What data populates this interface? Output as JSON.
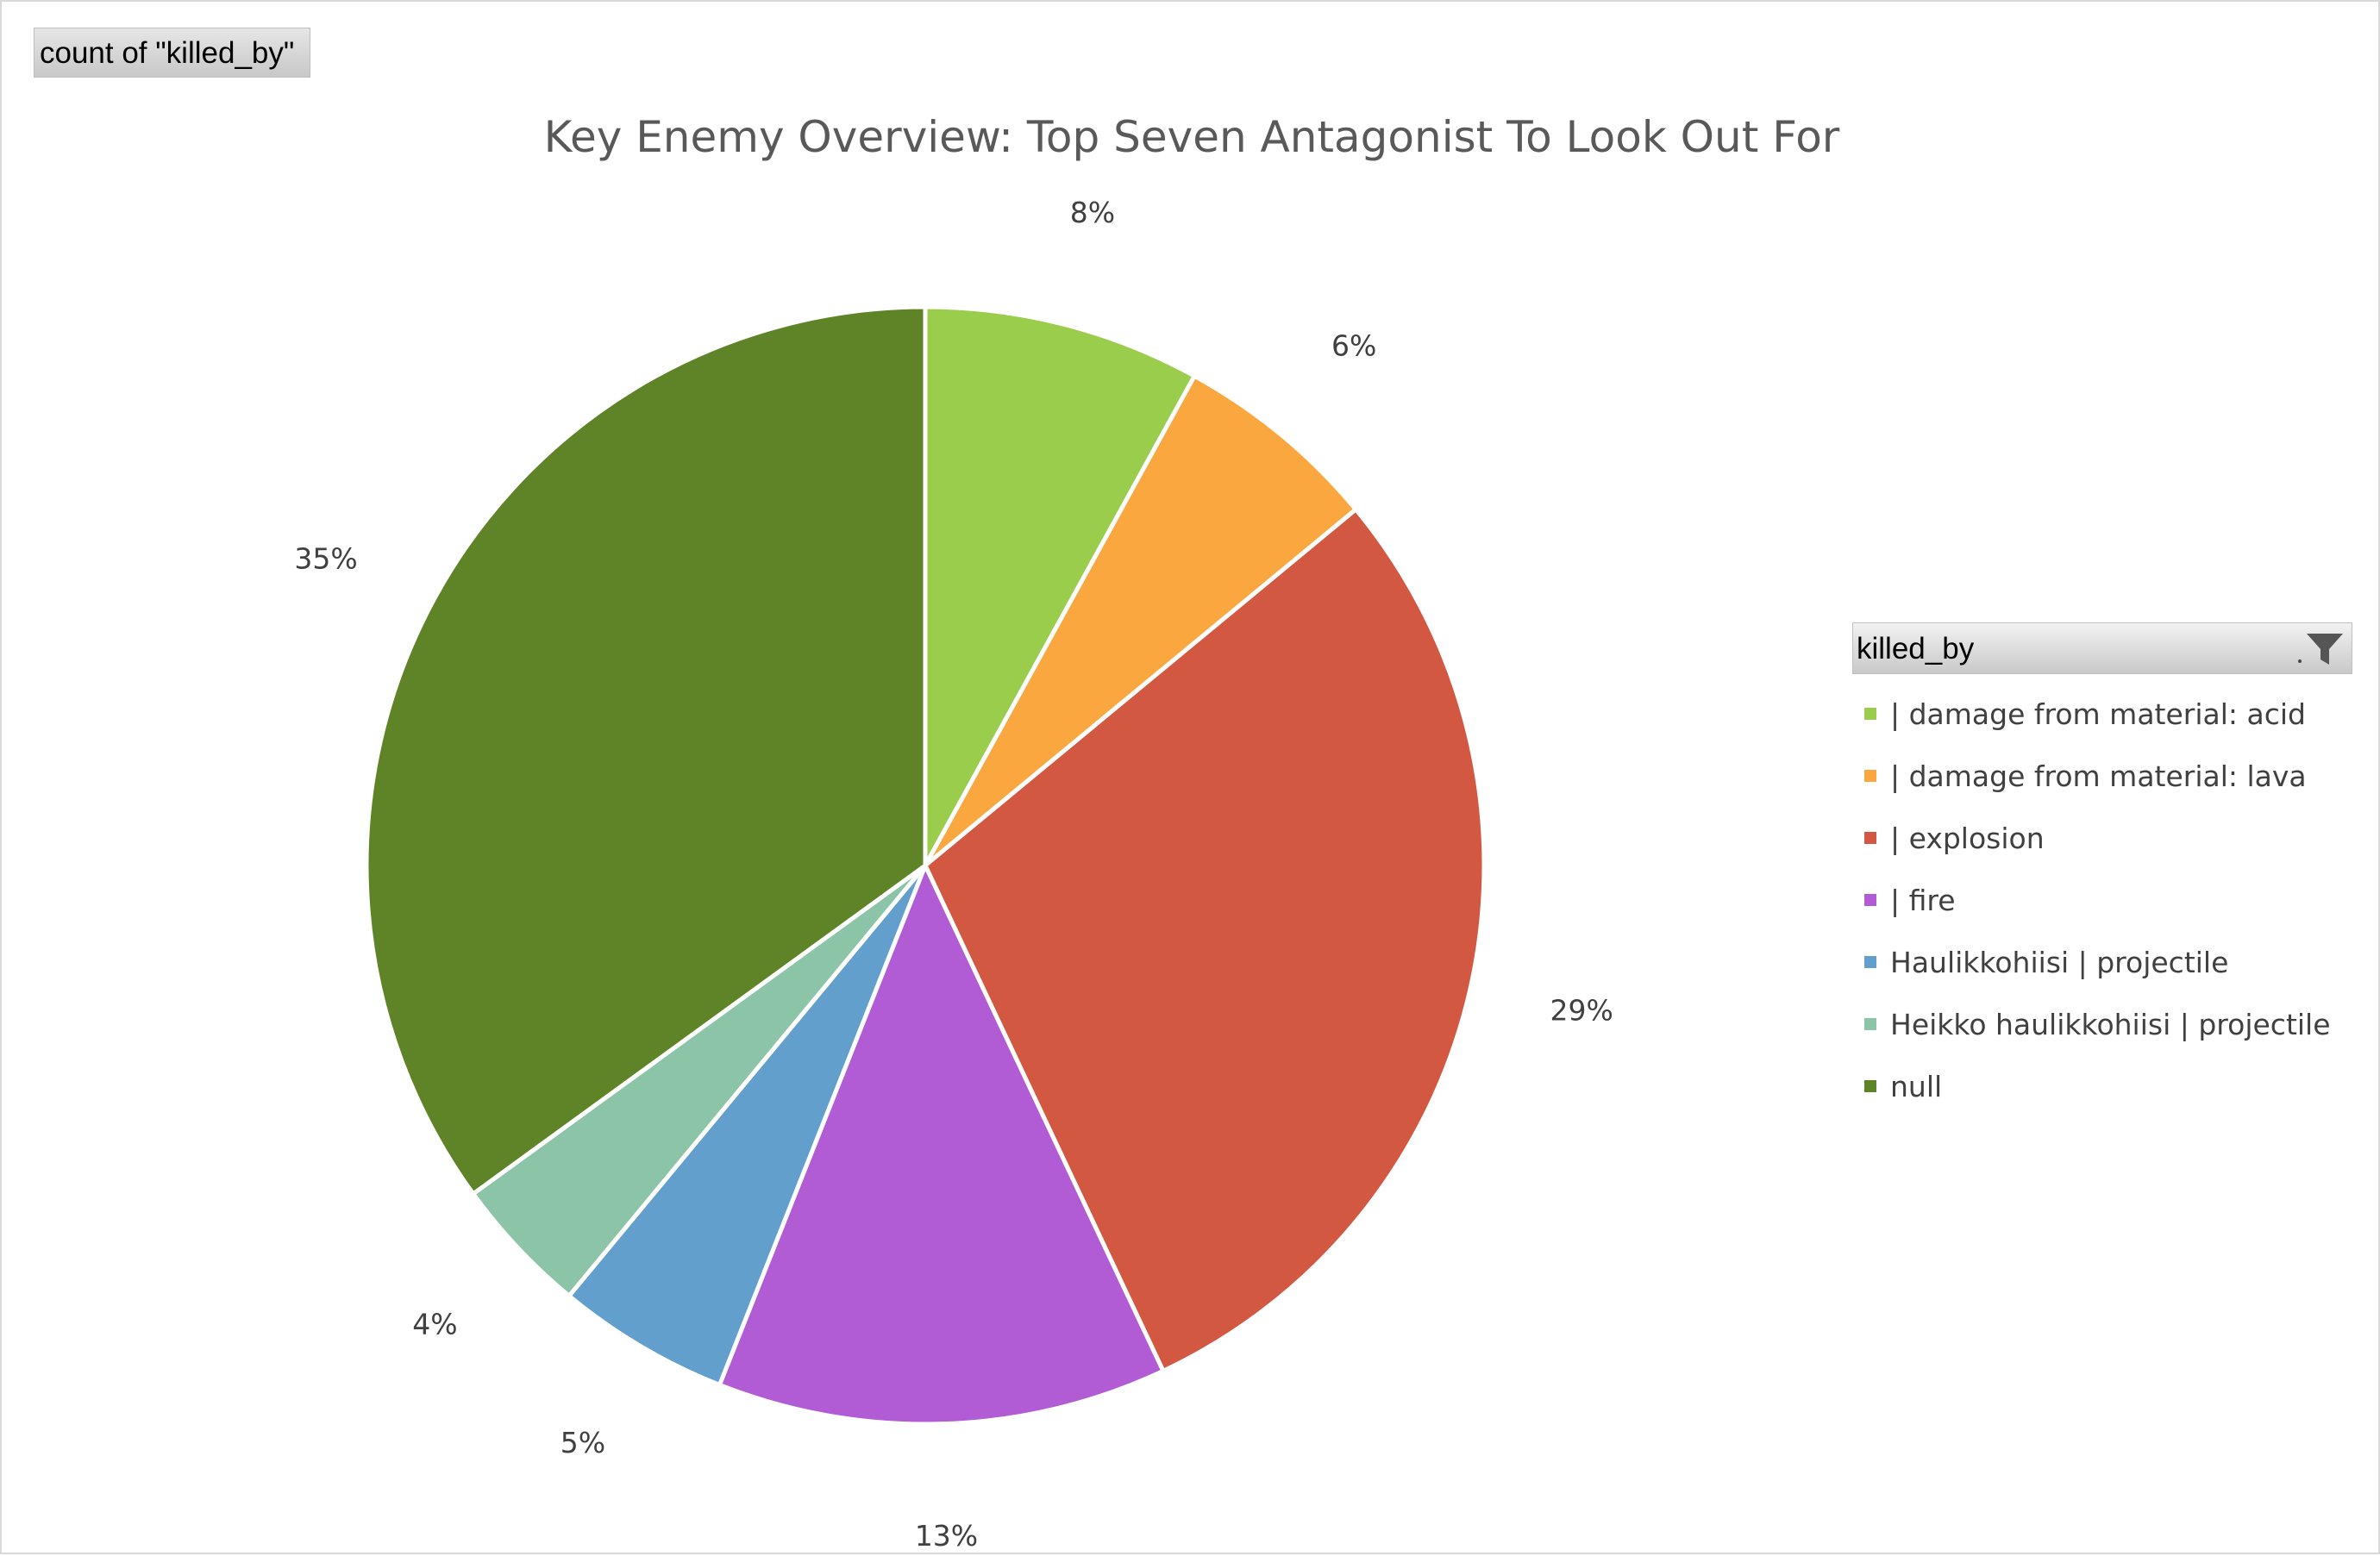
{
  "field_button": {
    "label": "count of \"killed_by\""
  },
  "legend": {
    "header": "killed_by"
  },
  "icons": {
    "filter": "filter-icon"
  },
  "chart_data": {
    "type": "pie",
    "title": "Key Enemy Overview: Top Seven Antagonist To Look Out For",
    "legend_placement": "right",
    "slices": [
      {
        "label": "| damage from material: acid",
        "value": 8,
        "display": "8%",
        "color": "#9bcd4c"
      },
      {
        "label": "| damage from material: lava",
        "value": 6,
        "display": "6%",
        "color": "#f9a73e"
      },
      {
        "label": "| explosion",
        "value": 29,
        "display": "29%",
        "color": "#d35842"
      },
      {
        "label": "| fire",
        "value": 13,
        "display": "13%",
        "color": "#b15bd4"
      },
      {
        "label": "Haulikkohiisi | projectile",
        "value": 5,
        "display": "5%",
        "color": "#629fcc"
      },
      {
        "label": "Heikko haulikkohiisi | projectile",
        "value": 4,
        "display": "4%",
        "color": "#8cc4a7"
      },
      {
        "label": "null",
        "value": 35,
        "display": "35%",
        "color": "#5f8428"
      }
    ]
  }
}
